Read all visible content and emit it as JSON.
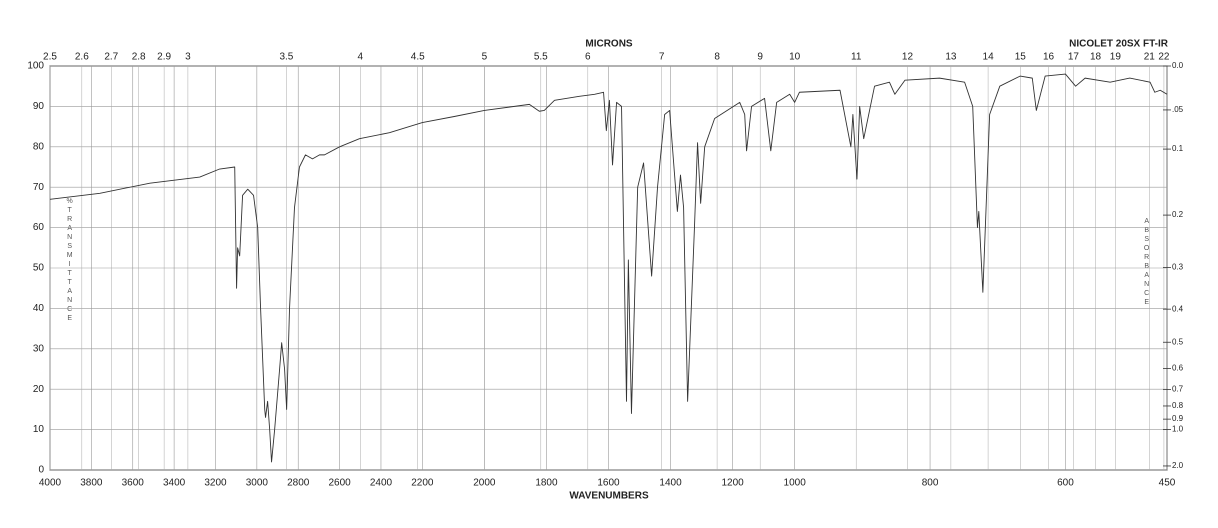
{
  "chart_data": {
    "type": "line",
    "title": "NICOLET 20SX FT-IR",
    "x_label": "WAVENUMBERS",
    "top_axis_label": "MICRONS",
    "y_label": "%TRANSMITTANCE",
    "y2_label": "ABSORBANCE",
    "color": "#333333",
    "grid": true,
    "xlim": [
      4000,
      450
    ],
    "x_scale_breaks": [
      2200,
      1000
    ],
    "xticks": [
      4000,
      3800,
      3600,
      3400,
      3200,
      3000,
      2800,
      2600,
      2400,
      2200,
      2000,
      1800,
      1600,
      1400,
      1200,
      1000,
      800,
      600,
      450
    ],
    "top_ticks": [
      2.5,
      2.6,
      2.7,
      2.8,
      2.9,
      3,
      3.5,
      4,
      4.5,
      5,
      5.5,
      6,
      7,
      8,
      9,
      10,
      11,
      12,
      13,
      14,
      15,
      16,
      17,
      18,
      19,
      21,
      22
    ],
    "ylim": [
      0,
      100
    ],
    "yticks": [
      0,
      10,
      20,
      30,
      40,
      50,
      60,
      70,
      80,
      90,
      100
    ],
    "y2ticks": [
      {
        "value": 0,
        "label": "0.0"
      },
      {
        "value": 0.05,
        "label": ".05"
      },
      0.1,
      0.2,
      0.3,
      0.4,
      0.5,
      0.6,
      0.7,
      0.8,
      0.9,
      {
        "value": 1,
        "label": "1.0"
      },
      {
        "value": 2,
        "label": "2.0"
      }
    ],
    "x": [
      4000,
      3759,
      3517,
      3276,
      3180,
      3107,
      3098,
      3093,
      3083,
      3069,
      3044,
      3016,
      2996,
      2982,
      2962,
      2958,
      2948,
      2938,
      2929,
      2914,
      2890,
      2880,
      2866,
      2856,
      2842,
      2818,
      2794,
      2765,
      2731,
      2697,
      2673,
      2600,
      2504,
      2359,
      2200,
      2097,
      2000,
      1855,
      1823,
      1807,
      1774,
      1694,
      1645,
      1616,
      1607,
      1597,
      1587,
      1574,
      1558,
      1542,
      1536,
      1526,
      1506,
      1487,
      1461,
      1442,
      1419,
      1403,
      1378,
      1368,
      1358,
      1345,
      1323,
      1313,
      1303,
      1290,
      1258,
      1177,
      1161,
      1155,
      1139,
      1097,
      1077,
      1058,
      1016,
      1000,
      993,
      933,
      917,
      914,
      908,
      904,
      898,
      882,
      860,
      852,
      837,
      786,
      749,
      737,
      730,
      728,
      722,
      712,
      697,
      667,
      649,
      643,
      630,
      600,
      585,
      571,
      534,
      505,
      475,
      468,
      460,
      450
    ],
    "values": [
      67,
      68.5,
      71,
      72.5,
      74.5,
      75,
      45,
      55,
      53,
      68,
      69.5,
      68,
      60,
      40,
      15,
      13,
      17,
      10,
      2,
      10,
      25,
      31.5,
      25,
      15,
      40,
      65,
      75,
      78,
      77,
      78,
      78,
      80,
      82,
      83.5,
      86,
      87.5,
      89,
      90.5,
      88.8,
      89,
      91.5,
      92.5,
      93,
      93.5,
      84,
      91.5,
      75.5,
      91,
      90,
      17,
      52,
      14,
      70,
      76,
      48,
      70,
      88,
      89,
      64,
      73,
      65,
      17,
      60,
      81,
      66,
      80,
      87,
      91,
      88,
      79,
      90,
      92,
      79,
      91,
      93,
      91,
      93.5,
      94,
      80,
      88,
      72,
      90,
      82,
      95,
      96,
      93,
      96.5,
      97,
      96,
      90,
      60,
      64,
      44,
      88,
      95,
      97.5,
      97,
      89,
      97.5,
      98,
      95,
      97,
      96,
      97,
      96,
      93.5,
      94,
      93
    ]
  }
}
